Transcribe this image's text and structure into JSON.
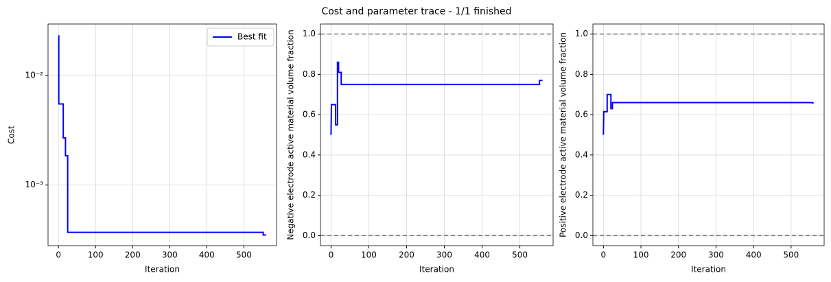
{
  "title": "Cost and parameter trace - 1/1 finished",
  "chart_data": [
    {
      "type": "line",
      "xlabel": "Iteration",
      "ylabel": "Cost",
      "yscale": "log",
      "grid": true,
      "legend": "upper right",
      "xlim": [
        -28,
        588
      ],
      "xticks": [
        0,
        100,
        200,
        300,
        400,
        500
      ],
      "ylim": [
        0.00028,
        0.0295
      ],
      "yticks": [
        {
          "value": 0.001,
          "label": "10⁻³"
        },
        {
          "value": 0.01,
          "label": "10⁻²"
        }
      ],
      "x": [
        0,
        1,
        1,
        13,
        13,
        19,
        19,
        25,
        25,
        552,
        552,
        560
      ],
      "series": [
        {
          "name": "Best fit",
          "color": "#0000ff",
          "values": [
            0.023,
            0.023,
            0.0055,
            0.0055,
            0.0027,
            0.0027,
            0.00185,
            0.00185,
            0.00037,
            0.00037,
            0.00035,
            0.00035
          ]
        }
      ]
    },
    {
      "type": "line",
      "xlabel": "Iteration",
      "ylabel": "Negative electrode active material volume fraction",
      "grid": true,
      "xlim": [
        -28,
        588
      ],
      "xticks": [
        0,
        100,
        200,
        300,
        400,
        500
      ],
      "ylim": [
        -0.05,
        1.05
      ],
      "yticks": [
        {
          "value": 0,
          "label": "0.0"
        },
        0.2,
        0.4,
        0.6,
        0.8,
        {
          "value": 1,
          "label": "1.0"
        }
      ],
      "hlines": [
        0,
        1
      ],
      "x": [
        0,
        1,
        12,
        12,
        17,
        17,
        20,
        20,
        27,
        27,
        552,
        552,
        560
      ],
      "color": "#0000ff",
      "values": [
        0.5,
        0.65,
        0.65,
        0.55,
        0.55,
        0.86,
        0.86,
        0.81,
        0.81,
        0.75,
        0.75,
        0.77,
        0.77
      ]
    },
    {
      "type": "line",
      "xlabel": "Iteration",
      "ylabel": "Positive electrode active material volume fraction",
      "grid": true,
      "xlim": [
        -28,
        588
      ],
      "xticks": [
        0,
        100,
        200,
        300,
        400,
        500
      ],
      "ylim": [
        -0.05,
        1.05
      ],
      "yticks": [
        {
          "value": 0,
          "label": "0.0"
        },
        0.2,
        0.4,
        0.6,
        0.8,
        {
          "value": 1,
          "label": "1.0"
        }
      ],
      "hlines": [
        0,
        1
      ],
      "x": [
        0,
        1,
        10,
        10,
        20,
        20,
        24,
        24,
        555,
        560
      ],
      "color": "#0000ff",
      "values": [
        0.5,
        0.615,
        0.615,
        0.7,
        0.7,
        0.63,
        0.63,
        0.66,
        0.66,
        0.657
      ]
    }
  ]
}
